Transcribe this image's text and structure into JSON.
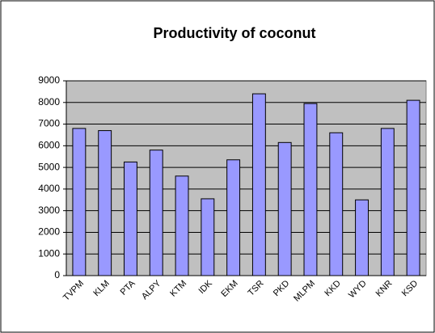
{
  "chart_data": {
    "type": "bar",
    "title": "Productivity of coconut",
    "categories": [
      "TVPM",
      "KLM",
      "PTA",
      "ALPY",
      "KTM",
      "IDK",
      "EKM",
      "TSR",
      "PKD",
      "MLPM",
      "KKD",
      "WYD",
      "KNR",
      "KSD"
    ],
    "values": [
      6800,
      6700,
      5250,
      5800,
      4600,
      3550,
      5350,
      8400,
      6150,
      7950,
      6600,
      3500,
      6800,
      8100
    ],
    "color": "#9999ff",
    "ylim": [
      0,
      9000
    ],
    "yticks": [
      0,
      1000,
      2000,
      3000,
      4000,
      5000,
      6000,
      7000,
      8000,
      9000
    ],
    "grid": true
  }
}
